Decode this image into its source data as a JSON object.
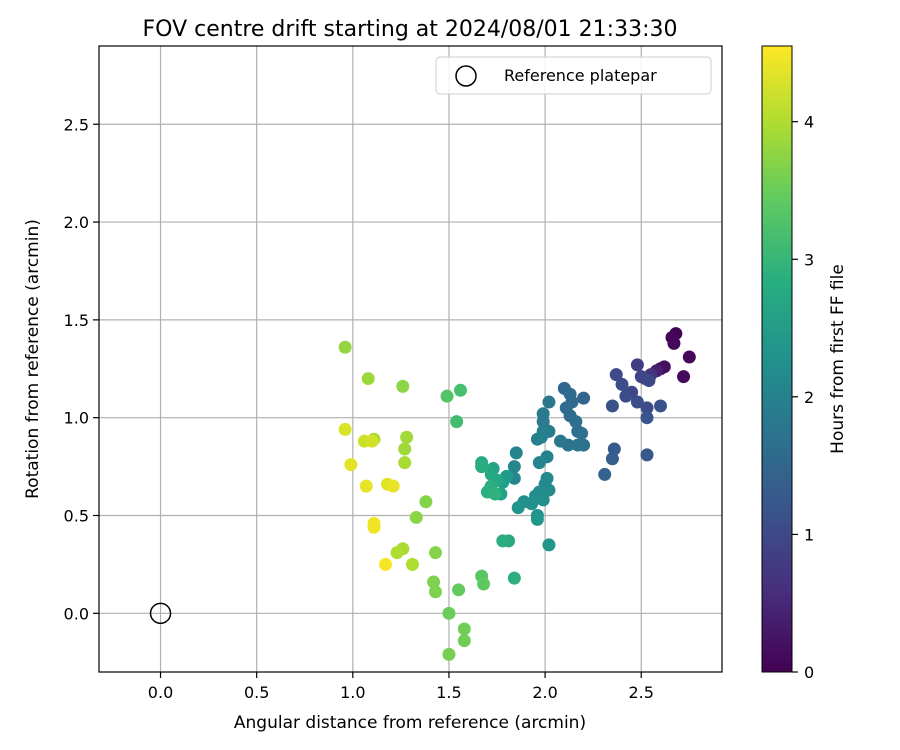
{
  "chart_data": {
    "type": "scatter",
    "title": "FOV centre drift starting at 2024/08/01 21:33:30",
    "xlabel": "Angular distance from reference (arcmin)",
    "ylabel": "Rotation from reference (arcmin)",
    "xlim": [
      -0.32,
      2.92
    ],
    "ylim": [
      -0.3,
      2.9
    ],
    "xticks": [
      "0.0",
      "0.5",
      "1.0",
      "1.5",
      "2.0",
      "2.5"
    ],
    "yticks": [
      "0.0",
      "0.5",
      "1.0",
      "1.5",
      "2.0",
      "2.5"
    ],
    "grid": true,
    "legend": {
      "position": "top-right",
      "entries": [
        {
          "label": "Reference platepar",
          "marker": "open-circle"
        }
      ]
    },
    "colorbar": {
      "label": "Hours from first FF file",
      "colormap": "viridis",
      "range": [
        0,
        4.55
      ],
      "ticks": [
        "0",
        "1",
        "2",
        "3",
        "4"
      ]
    },
    "reference_point": {
      "x": 0.0,
      "y": 0.0
    },
    "points": [
      {
        "x": 2.68,
        "y": 1.43,
        "c": 0.02
      },
      {
        "x": 2.66,
        "y": 1.41,
        "c": 0.05
      },
      {
        "x": 2.67,
        "y": 1.38,
        "c": 0.08
      },
      {
        "x": 2.75,
        "y": 1.31,
        "c": 0.1
      },
      {
        "x": 2.72,
        "y": 1.21,
        "c": 0.12
      },
      {
        "x": 2.6,
        "y": 1.25,
        "c": 0.15
      },
      {
        "x": 2.62,
        "y": 1.26,
        "c": 0.2
      },
      {
        "x": 2.58,
        "y": 1.24,
        "c": 0.4
      },
      {
        "x": 2.55,
        "y": 1.22,
        "c": 0.7
      },
      {
        "x": 2.52,
        "y": 1.2,
        "c": 0.9
      },
      {
        "x": 2.48,
        "y": 1.27,
        "c": 0.85
      },
      {
        "x": 2.5,
        "y": 1.21,
        "c": 0.95
      },
      {
        "x": 2.54,
        "y": 1.19,
        "c": 1.0
      },
      {
        "x": 2.53,
        "y": 1.05,
        "c": 1.05
      },
      {
        "x": 2.48,
        "y": 1.08,
        "c": 1.1
      },
      {
        "x": 2.45,
        "y": 1.13,
        "c": 1.0
      },
      {
        "x": 2.42,
        "y": 1.11,
        "c": 1.05
      },
      {
        "x": 2.4,
        "y": 1.17,
        "c": 1.1
      },
      {
        "x": 2.37,
        "y": 1.22,
        "c": 1.05
      },
      {
        "x": 2.35,
        "y": 1.06,
        "c": 1.15
      },
      {
        "x": 2.53,
        "y": 1.0,
        "c": 1.2
      },
      {
        "x": 2.6,
        "y": 1.06,
        "c": 1.15
      },
      {
        "x": 2.53,
        "y": 0.81,
        "c": 1.25
      },
      {
        "x": 2.36,
        "y": 0.84,
        "c": 1.3
      },
      {
        "x": 2.35,
        "y": 0.79,
        "c": 1.35
      },
      {
        "x": 2.31,
        "y": 0.71,
        "c": 1.4
      },
      {
        "x": 2.2,
        "y": 1.1,
        "c": 1.45
      },
      {
        "x": 2.1,
        "y": 1.15,
        "c": 1.5
      },
      {
        "x": 2.13,
        "y": 1.12,
        "c": 1.55
      },
      {
        "x": 2.14,
        "y": 1.08,
        "c": 1.55
      },
      {
        "x": 2.11,
        "y": 1.05,
        "c": 1.6
      },
      {
        "x": 2.13,
        "y": 1.01,
        "c": 1.6
      },
      {
        "x": 2.16,
        "y": 0.98,
        "c": 1.65
      },
      {
        "x": 2.17,
        "y": 0.93,
        "c": 1.65
      },
      {
        "x": 2.19,
        "y": 0.92,
        "c": 1.7
      },
      {
        "x": 2.2,
        "y": 0.86,
        "c": 1.7
      },
      {
        "x": 2.17,
        "y": 0.86,
        "c": 1.75
      },
      {
        "x": 2.12,
        "y": 0.86,
        "c": 1.75
      },
      {
        "x": 2.08,
        "y": 0.88,
        "c": 1.8
      },
      {
        "x": 2.02,
        "y": 1.08,
        "c": 1.8
      },
      {
        "x": 1.99,
        "y": 1.02,
        "c": 1.85
      },
      {
        "x": 1.99,
        "y": 0.98,
        "c": 1.85
      },
      {
        "x": 2.0,
        "y": 0.94,
        "c": 1.9
      },
      {
        "x": 2.02,
        "y": 0.93,
        "c": 1.9
      },
      {
        "x": 1.99,
        "y": 0.93,
        "c": 1.95
      },
      {
        "x": 1.96,
        "y": 0.89,
        "c": 1.95
      },
      {
        "x": 1.98,
        "y": 0.9,
        "c": 2.0
      },
      {
        "x": 2.01,
        "y": 0.8,
        "c": 2.0
      },
      {
        "x": 1.97,
        "y": 0.77,
        "c": 2.05
      },
      {
        "x": 1.85,
        "y": 0.82,
        "c": 2.05
      },
      {
        "x": 1.84,
        "y": 0.75,
        "c": 2.1
      },
      {
        "x": 1.84,
        "y": 0.69,
        "c": 2.1
      },
      {
        "x": 2.01,
        "y": 0.69,
        "c": 2.15
      },
      {
        "x": 2.0,
        "y": 0.66,
        "c": 2.15
      },
      {
        "x": 2.02,
        "y": 0.63,
        "c": 2.2
      },
      {
        "x": 1.97,
        "y": 0.62,
        "c": 2.2
      },
      {
        "x": 1.95,
        "y": 0.6,
        "c": 2.25
      },
      {
        "x": 1.99,
        "y": 0.58,
        "c": 2.25
      },
      {
        "x": 1.93,
        "y": 0.56,
        "c": 2.3
      },
      {
        "x": 1.89,
        "y": 0.57,
        "c": 2.3
      },
      {
        "x": 1.86,
        "y": 0.54,
        "c": 2.35
      },
      {
        "x": 1.96,
        "y": 0.5,
        "c": 2.35
      },
      {
        "x": 1.96,
        "y": 0.48,
        "c": 2.4
      },
      {
        "x": 2.02,
        "y": 0.35,
        "c": 2.4
      },
      {
        "x": 1.8,
        "y": 0.7,
        "c": 2.5
      },
      {
        "x": 1.78,
        "y": 0.67,
        "c": 2.55
      },
      {
        "x": 1.77,
        "y": 0.61,
        "c": 2.6
      },
      {
        "x": 1.73,
        "y": 0.74,
        "c": 2.65
      },
      {
        "x": 1.72,
        "y": 0.71,
        "c": 2.7
      },
      {
        "x": 1.75,
        "y": 0.68,
        "c": 2.7
      },
      {
        "x": 1.67,
        "y": 0.77,
        "c": 2.75
      },
      {
        "x": 1.67,
        "y": 0.75,
        "c": 2.8
      },
      {
        "x": 1.72,
        "y": 0.65,
        "c": 2.8
      },
      {
        "x": 1.71,
        "y": 0.63,
        "c": 2.85
      },
      {
        "x": 1.7,
        "y": 0.62,
        "c": 2.85
      },
      {
        "x": 1.74,
        "y": 0.61,
        "c": 2.9
      },
      {
        "x": 1.81,
        "y": 0.37,
        "c": 2.75
      },
      {
        "x": 1.78,
        "y": 0.37,
        "c": 2.8
      },
      {
        "x": 1.84,
        "y": 0.18,
        "c": 2.85
      },
      {
        "x": 1.54,
        "y": 0.98,
        "c": 3.15
      },
      {
        "x": 1.56,
        "y": 1.14,
        "c": 3.2
      },
      {
        "x": 1.49,
        "y": 1.11,
        "c": 3.3
      },
      {
        "x": 1.67,
        "y": 0.19,
        "c": 3.35
      },
      {
        "x": 1.68,
        "y": 0.15,
        "c": 3.4
      },
      {
        "x": 1.55,
        "y": 0.12,
        "c": 3.45
      },
      {
        "x": 1.5,
        "y": 0.0,
        "c": 3.5
      },
      {
        "x": 1.58,
        "y": -0.08,
        "c": 3.55
      },
      {
        "x": 1.58,
        "y": -0.14,
        "c": 3.55
      },
      {
        "x": 1.5,
        "y": -0.21,
        "c": 3.6
      },
      {
        "x": 1.42,
        "y": 0.16,
        "c": 3.65
      },
      {
        "x": 1.43,
        "y": 0.11,
        "c": 3.65
      },
      {
        "x": 1.43,
        "y": 0.31,
        "c": 3.7
      },
      {
        "x": 1.38,
        "y": 0.57,
        "c": 3.7
      },
      {
        "x": 1.33,
        "y": 0.49,
        "c": 3.75
      },
      {
        "x": 1.26,
        "y": 1.16,
        "c": 3.75
      },
      {
        "x": 0.96,
        "y": 1.36,
        "c": 3.8
      },
      {
        "x": 1.08,
        "y": 1.2,
        "c": 3.85
      },
      {
        "x": 1.28,
        "y": 0.9,
        "c": 3.9
      },
      {
        "x": 1.27,
        "y": 0.84,
        "c": 3.9
      },
      {
        "x": 1.27,
        "y": 0.77,
        "c": 3.95
      },
      {
        "x": 1.11,
        "y": 0.89,
        "c": 3.95
      },
      {
        "x": 1.26,
        "y": 0.33,
        "c": 3.95
      },
      {
        "x": 1.23,
        "y": 0.31,
        "c": 4.0
      },
      {
        "x": 1.31,
        "y": 0.25,
        "c": 4.0
      },
      {
        "x": 1.06,
        "y": 0.88,
        "c": 4.2
      },
      {
        "x": 1.1,
        "y": 0.88,
        "c": 4.25
      },
      {
        "x": 0.96,
        "y": 0.94,
        "c": 4.3
      },
      {
        "x": 0.99,
        "y": 0.76,
        "c": 4.35
      },
      {
        "x": 1.18,
        "y": 0.66,
        "c": 4.35
      },
      {
        "x": 1.21,
        "y": 0.65,
        "c": 4.4
      },
      {
        "x": 1.07,
        "y": 0.65,
        "c": 4.4
      },
      {
        "x": 1.11,
        "y": 0.46,
        "c": 4.45
      },
      {
        "x": 1.11,
        "y": 0.44,
        "c": 4.45
      },
      {
        "x": 1.17,
        "y": 0.25,
        "c": 4.5
      }
    ]
  }
}
